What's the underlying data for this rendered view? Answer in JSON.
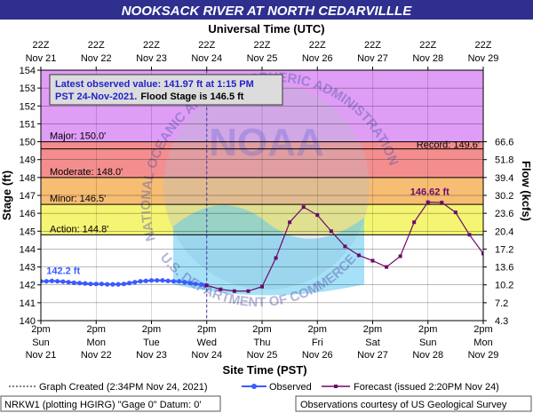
{
  "chart_data": {
    "type": "line",
    "title": "NOOKSACK RIVER AT NORTH CEDARVILLLE",
    "top_axis_title": "Universal Time (UTC)",
    "bottom_axis_title": "Site Time (PST)",
    "ylabel": "Stage (ft)",
    "ylabel_right": "Flow (kcfs)",
    "ylim": [
      140,
      154
    ],
    "y_ticks": [
      "140",
      "141",
      "142",
      "143",
      "144",
      "145",
      "146",
      "147",
      "148",
      "149",
      "150",
      "151",
      "152",
      "153",
      "154"
    ],
    "right_ticks": [
      {
        "stage": 140,
        "label": "4.3"
      },
      {
        "stage": 141,
        "label": "7.2"
      },
      {
        "stage": 142,
        "label": "10.2"
      },
      {
        "stage": 143,
        "label": "13.6"
      },
      {
        "stage": 144,
        "label": "17.2"
      },
      {
        "stage": 145,
        "label": "20.4"
      },
      {
        "stage": 146,
        "label": "23.6"
      },
      {
        "stage": 147,
        "label": "30.2"
      },
      {
        "stage": 148,
        "label": "39.4"
      },
      {
        "stage": 149,
        "label": "51.8"
      },
      {
        "stage": 150,
        "label": "66.6"
      }
    ],
    "x_ticks_bottom": [
      {
        "day": 0,
        "l1": "2pm",
        "l2": "Sun",
        "l3": "Nov 21"
      },
      {
        "day": 1,
        "l1": "2pm",
        "l2": "Mon",
        "l3": "Nov 22"
      },
      {
        "day": 2,
        "l1": "2pm",
        "l2": "Tue",
        "l3": "Nov 23"
      },
      {
        "day": 3,
        "l1": "2pm",
        "l2": "Wed",
        "l3": "Nov 24"
      },
      {
        "day": 4,
        "l1": "2pm",
        "l2": "Thu",
        "l3": "Nov 25"
      },
      {
        "day": 5,
        "l1": "2pm",
        "l2": "Fri",
        "l3": "Nov 26"
      },
      {
        "day": 6,
        "l1": "2pm",
        "l2": "Sat",
        "l3": "Nov 27"
      },
      {
        "day": 7,
        "l1": "2pm",
        "l2": "Sun",
        "l3": "Nov 28"
      },
      {
        "day": 8,
        "l1": "2pm",
        "l2": "Mon",
        "l3": "Nov 29"
      }
    ],
    "x_ticks_top": [
      {
        "day": 0,
        "l1": "22Z",
        "l2": "Nov 21"
      },
      {
        "day": 1,
        "l1": "22Z",
        "l2": "Nov 22"
      },
      {
        "day": 2,
        "l1": "22Z",
        "l2": "Nov 23"
      },
      {
        "day": 3,
        "l1": "22Z",
        "l2": "Nov 24"
      },
      {
        "day": 4,
        "l1": "22Z",
        "l2": "Nov 25"
      },
      {
        "day": 5,
        "l1": "22Z",
        "l2": "Nov 26"
      },
      {
        "day": 6,
        "l1": "22Z",
        "l2": "Nov 27"
      },
      {
        "day": 7,
        "l1": "22Z",
        "l2": "Nov 28"
      },
      {
        "day": 8,
        "l1": "22Z",
        "l2": "Nov 29"
      }
    ],
    "bands": [
      {
        "from": 150,
        "to": 154,
        "color": "#d98cf3"
      },
      {
        "from": 148,
        "to": 150,
        "color": "#f27a7a"
      },
      {
        "from": 146.5,
        "to": 148,
        "color": "#f5b25a"
      },
      {
        "from": 144.8,
        "to": 146.5,
        "color": "#f3f35a"
      },
      {
        "from": 140,
        "to": 144.8,
        "color": "#ffffff"
      }
    ],
    "thresholds": [
      {
        "value": 150.0,
        "label": "Major: 150.0'"
      },
      {
        "value": 148.0,
        "label": "Moderate: 148.0'"
      },
      {
        "value": 146.5,
        "label": "Minor: 146.5'"
      },
      {
        "value": 144.8,
        "label": "Action: 144.8'"
      }
    ],
    "record": {
      "value": 149.6,
      "label": "Record: 149.6'"
    },
    "observed": {
      "name": "Observed",
      "color": "#3a5bff",
      "x": [
        0.0,
        0.1,
        0.2,
        0.3,
        0.4,
        0.5,
        0.6,
        0.7,
        0.8,
        0.9,
        1.0,
        1.1,
        1.2,
        1.3,
        1.4,
        1.5,
        1.6,
        1.7,
        1.8,
        1.9,
        2.0,
        2.1,
        2.2,
        2.3,
        2.4,
        2.5,
        2.6,
        2.7,
        2.8,
        2.9,
        2.97
      ],
      "y": [
        142.2,
        142.2,
        142.22,
        142.2,
        142.18,
        142.15,
        142.12,
        142.1,
        142.08,
        142.05,
        142.05,
        142.05,
        142.03,
        142.03,
        142.03,
        142.05,
        142.1,
        142.15,
        142.2,
        142.22,
        142.25,
        142.25,
        142.25,
        142.22,
        142.2,
        142.2,
        142.15,
        142.1,
        142.05,
        142.02,
        141.97
      ]
    },
    "observed_label": "142.2 ft",
    "forecast": {
      "name": "Forecast",
      "color": "#6b0a6b",
      "x": [
        3.0,
        3.25,
        3.5,
        3.75,
        4.0,
        4.25,
        4.5,
        4.75,
        5.0,
        5.25,
        5.5,
        5.75,
        6.0,
        6.25,
        6.5,
        6.75,
        7.0,
        7.25,
        7.5,
        7.75,
        8.0
      ],
      "y": [
        141.97,
        141.75,
        141.65,
        141.65,
        141.9,
        143.5,
        145.5,
        146.35,
        145.9,
        145.0,
        144.15,
        143.65,
        143.35,
        143.0,
        143.6,
        145.5,
        146.62,
        146.6,
        146.05,
        144.8,
        143.75
      ]
    },
    "forecast_label": "146.62 ft",
    "now_day": 3.0,
    "info_box": {
      "line1": "Latest observed value: 141.97 ft at 1:15 PM",
      "line2_prefix": "PST 24-Nov-2021.",
      "line2_suffix": "Flood Stage is 146.5 ft"
    },
    "legend": {
      "created": "Graph Created (2:34PM Nov 24, 2021)",
      "observed": "Observed",
      "forecast": "Forecast (issued 2:20PM Nov 24)"
    },
    "footer_left": "NRKW1 (plotting HGIRG) \"Gage 0\" Datum: 0'",
    "footer_right": "Observations courtesy of US Geological Survey",
    "watermark_text_left": "NATIONAL OCEANIC AND ATMOSPHERIC ADMINISTRATION",
    "watermark_text_bottom": "U.S. DEPARTMENT OF COMMERCE",
    "watermark_logo": "NOAA"
  }
}
